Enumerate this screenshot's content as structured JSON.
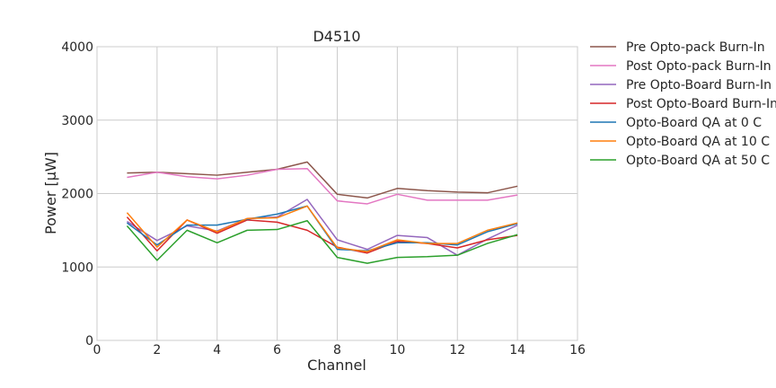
{
  "chart_data": {
    "type": "line",
    "title": "D4510",
    "xlabel": "Channel",
    "ylabel": "Power [μW]",
    "xlim": [
      0,
      16
    ],
    "ylim": [
      0,
      4000
    ],
    "xticks": [
      "0",
      "2",
      "4",
      "6",
      "8",
      "10",
      "12",
      "14",
      "16"
    ],
    "yticks": [
      "0",
      "1000",
      "2000",
      "3000",
      "4000"
    ],
    "grid": true,
    "legend_position": "outside-right",
    "x": [
      1,
      2,
      3,
      4,
      5,
      6,
      7,
      8,
      9,
      10,
      11,
      12,
      13,
      14
    ],
    "series": [
      {
        "name": "Pre Opto-pack Burn-In",
        "color": "#8c564b",
        "values": [
          2280,
          2290,
          2270,
          2250,
          2290,
          2330,
          2430,
          1990,
          1940,
          2070,
          2040,
          2020,
          2010,
          2100
        ]
      },
      {
        "name": "Post Opto-pack Burn-In",
        "color": "#e377c2",
        "values": [
          2220,
          2290,
          2230,
          2200,
          2250,
          2330,
          2340,
          1900,
          1860,
          1990,
          1910,
          1910,
          1910,
          1980
        ]
      },
      {
        "name": "Pre Opto-Board Burn-In",
        "color": "#9467bd",
        "values": [
          1620,
          1360,
          1560,
          1490,
          1660,
          1680,
          1920,
          1370,
          1240,
          1430,
          1400,
          1160,
          1380,
          1570
        ]
      },
      {
        "name": "Post Opto-Board Burn-In",
        "color": "#d62728",
        "values": [
          1680,
          1220,
          1640,
          1460,
          1640,
          1610,
          1500,
          1270,
          1190,
          1350,
          1320,
          1260,
          1370,
          1430
        ]
      },
      {
        "name": "Opto-Board QA at 0 C",
        "color": "#1f77b4",
        "values": [
          1600,
          1300,
          1570,
          1570,
          1650,
          1720,
          1830,
          1240,
          1220,
          1330,
          1330,
          1300,
          1480,
          1590
        ]
      },
      {
        "name": "Opto-Board QA at 10 C",
        "color": "#ff7f0e",
        "values": [
          1740,
          1270,
          1640,
          1480,
          1660,
          1670,
          1830,
          1260,
          1210,
          1370,
          1320,
          1320,
          1500,
          1600
        ]
      },
      {
        "name": "Opto-Board QA at 50 C",
        "color": "#2ca02c",
        "values": [
          1560,
          1090,
          1500,
          1330,
          1500,
          1510,
          1630,
          1130,
          1050,
          1130,
          1140,
          1160,
          1320,
          1440
        ]
      }
    ]
  }
}
